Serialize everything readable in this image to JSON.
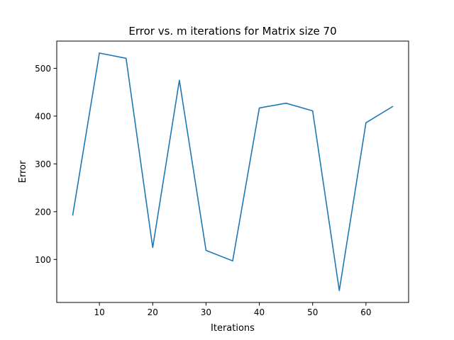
{
  "chart_data": {
    "type": "line",
    "title": "Error vs. m iterations for Matrix size 70",
    "xlabel": "Iterations",
    "ylabel": "Error",
    "xlim": [
      2,
      68
    ],
    "ylim": [
      10,
      557
    ],
    "xticks": [
      10,
      20,
      30,
      40,
      50,
      60
    ],
    "yticks": [
      100,
      200,
      300,
      400,
      500
    ],
    "grid": false,
    "series": [
      {
        "color": "#1f77b4",
        "x": [
          5,
          10,
          15,
          20,
          25,
          30,
          35,
          40,
          45,
          50,
          55,
          60,
          65
        ],
        "y": [
          193,
          532,
          521,
          125,
          475,
          119,
          97,
          417,
          427,
          411,
          35,
          386,
          420
        ]
      }
    ]
  }
}
